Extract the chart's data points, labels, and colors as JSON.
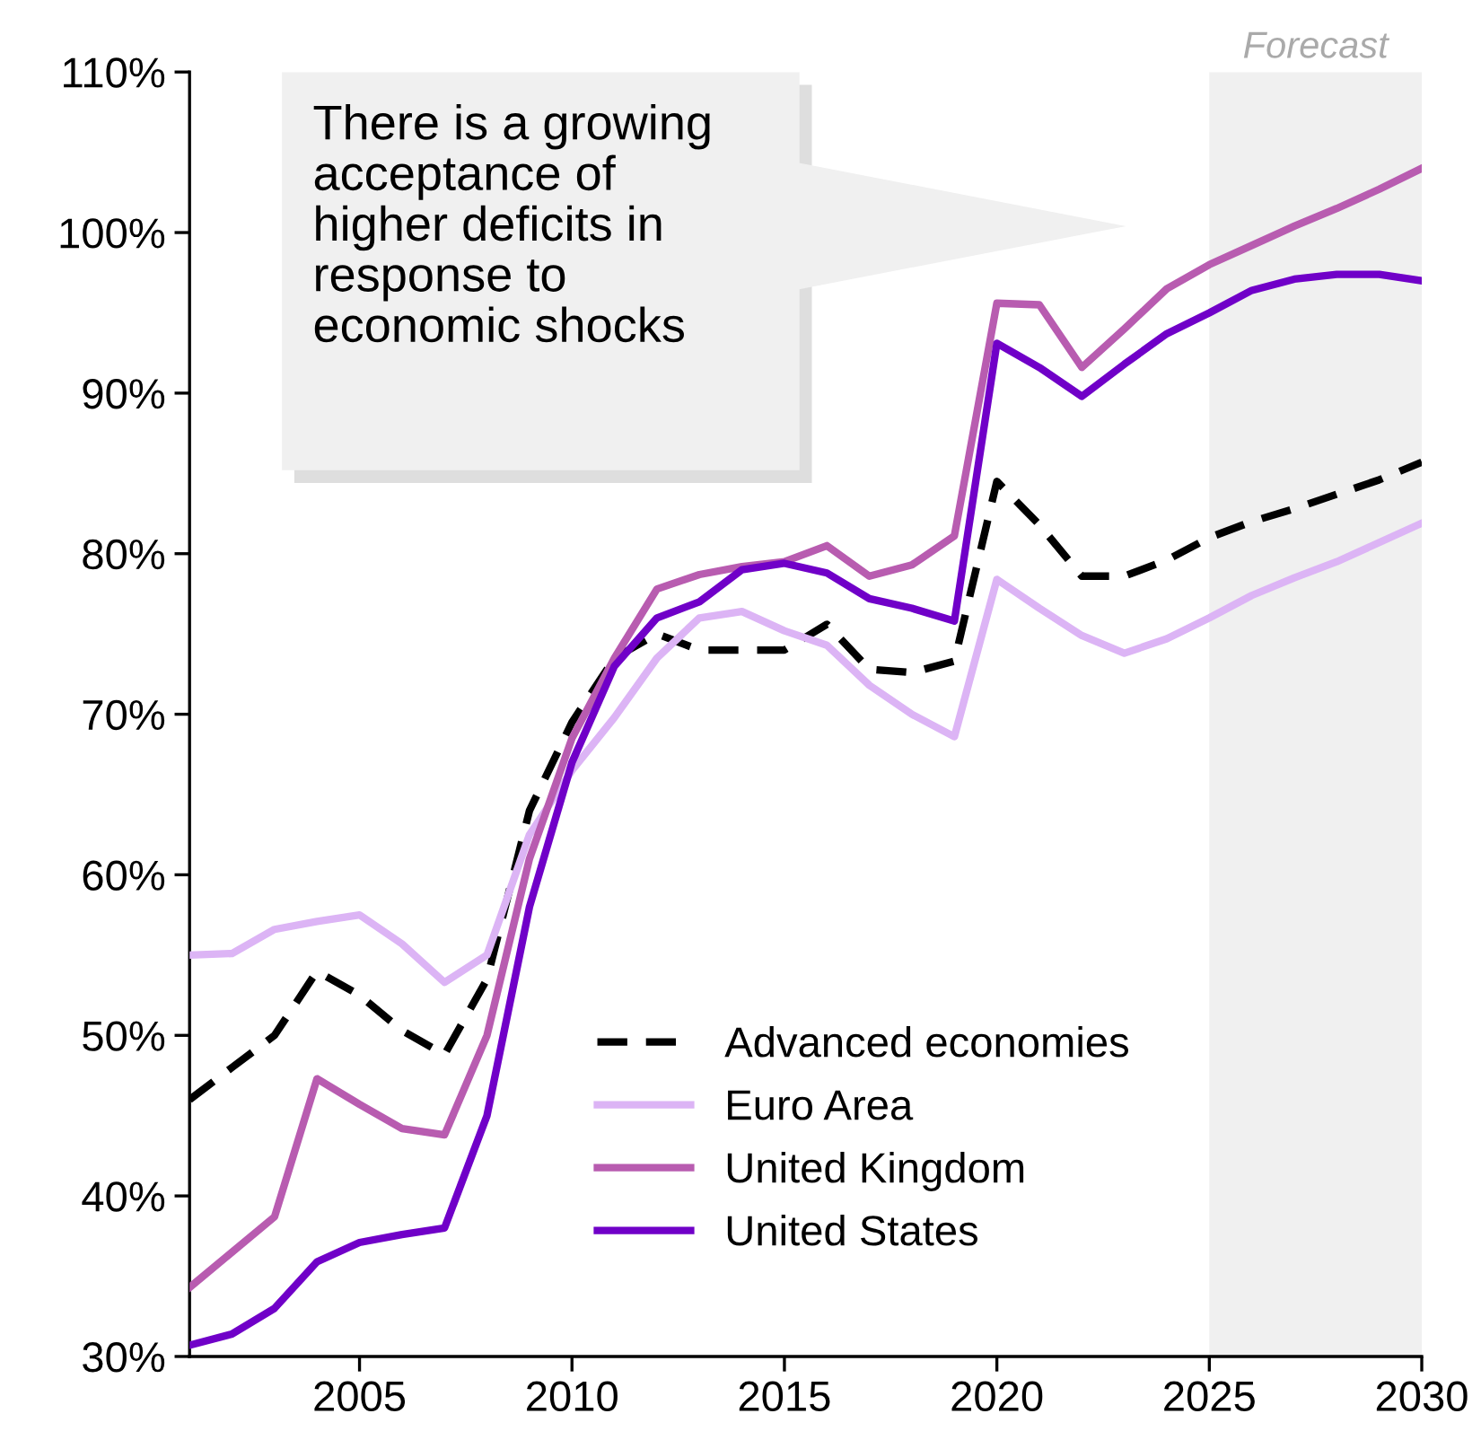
{
  "chart_data": {
    "type": "line",
    "x": [
      2001,
      2002,
      2003,
      2004,
      2005,
      2006,
      2007,
      2008,
      2009,
      2010,
      2011,
      2012,
      2013,
      2014,
      2015,
      2016,
      2017,
      2018,
      2019,
      2020,
      2021,
      2022,
      2023,
      2024,
      2025,
      2026,
      2027,
      2028,
      2029,
      2030
    ],
    "series": [
      {
        "name": "Advanced economies",
        "color": "#000000",
        "line_style": "dashed",
        "values": [
          46,
          48,
          50,
          54,
          52.5,
          50.3,
          48.8,
          53.5,
          64,
          69.5,
          73.5,
          75,
          74,
          74,
          74,
          75.6,
          72.8,
          72.6,
          73.3,
          84.5,
          81.8,
          78.6,
          78.6,
          79.6,
          81,
          82,
          82.8,
          83.7,
          84.6,
          85.7
        ]
      },
      {
        "name": "Euro Area",
        "color": "#dcb4f5",
        "line_style": "solid",
        "values": [
          55,
          55.1,
          56.6,
          57.1,
          57.5,
          55.7,
          53.3,
          55,
          62.5,
          66.5,
          69.8,
          73.5,
          76,
          76.4,
          75.2,
          74.3,
          71.8,
          70,
          68.6,
          78.4,
          76.6,
          74.9,
          73.8,
          74.7,
          76,
          77.4,
          78.5,
          79.5,
          80.7,
          81.9
        ]
      },
      {
        "name": "United Kingdom",
        "color": "#b85cb0",
        "line_style": "solid",
        "values": [
          34.3,
          36.5,
          38.7,
          47.3,
          45.7,
          44.2,
          43.8,
          50,
          61,
          68.5,
          73.5,
          77.8,
          78.7,
          79.2,
          79.5,
          80.5,
          78.6,
          79.3,
          81.1,
          95.6,
          95.5,
          91.6,
          94,
          96.5,
          98,
          99.2,
          100.4,
          101.5,
          102.7,
          104
        ]
      },
      {
        "name": "United States",
        "color": "#7000c8",
        "line_style": "solid",
        "values": [
          30.7,
          31.4,
          33,
          35.9,
          37.1,
          37.6,
          38,
          45,
          58,
          67,
          73,
          76,
          77,
          79,
          79.4,
          78.8,
          77.2,
          76.6,
          75.8,
          93.1,
          91.6,
          89.8,
          91.8,
          93.7,
          95,
          96.4,
          97.1,
          97.4,
          97.4,
          97
        ]
      }
    ],
    "xlim": [
      2001,
      2030
    ],
    "xticks": [
      2005,
      2010,
      2015,
      2020,
      2025,
      2030
    ],
    "ylim": [
      30,
      110
    ],
    "yticks": [
      {
        "value": 30,
        "label": "30%"
      },
      {
        "value": 40,
        "label": "40%"
      },
      {
        "value": 50,
        "label": "50%"
      },
      {
        "value": 60,
        "label": "60%"
      },
      {
        "value": 70,
        "label": "70%"
      },
      {
        "value": 80,
        "label": "80%"
      },
      {
        "value": 90,
        "label": "90%"
      },
      {
        "value": 100,
        "label": "100%"
      },
      {
        "value": 110,
        "label": "110%"
      }
    ],
    "bands": [
      {
        "axis": "x",
        "from": 2025,
        "to": 2030,
        "label": "Forecast",
        "color": "#f0f0f0"
      }
    ],
    "annotations": [
      "There is a growing acceptance of higher deficits in response to economic shocks"
    ],
    "grid": false,
    "legend": "bottom right",
    "marker": "none"
  }
}
